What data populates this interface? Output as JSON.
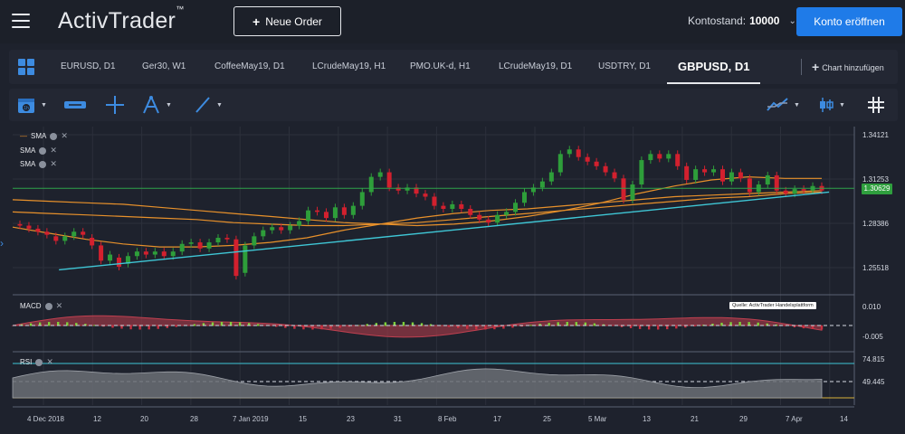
{
  "header": {
    "logo_text": "ActivTrader",
    "logo_tm": "™",
    "new_order_label": "Neue Order",
    "balance_label": "Kontostand:",
    "balance_value": "10000",
    "open_account_label": "Konto eröffnen"
  },
  "tabs": [
    {
      "label": "EURUSD, D1"
    },
    {
      "label": "Ger30, W1"
    },
    {
      "label": "CoffeeMay19, D1"
    },
    {
      "label": "LCrudeMay19, H1"
    },
    {
      "label": "PMO.UK-d, H1"
    },
    {
      "label": "LCrudeMay19, D1"
    },
    {
      "label": "USDTRY, D1"
    },
    {
      "label": "GBPUSD, D1"
    }
  ],
  "add_chart_label": "Chart hinzufügen",
  "toolbar": {
    "icons": [
      "calendar-icon",
      "bar-width-icon",
      "crosshair-icon",
      "fibonacci-icon",
      "trendline-icon",
      "indicator-icon",
      "candle-type-icon",
      "grid-toggle-icon"
    ]
  },
  "indicators": {
    "sma1": "SMA",
    "sma2": "SMA",
    "sma3": "SMA",
    "macd": "MACD",
    "rsi": "RSI"
  },
  "source_note": "Quelle: ActivTrader Handelsplattform",
  "price_axis": {
    "main": [
      "1.34121",
      "1.31253",
      "1.28386",
      "1.25518"
    ],
    "last_price": "1.30629",
    "macd": [
      "0.010",
      "-0.005"
    ],
    "rsi": [
      "74.815",
      "49.445"
    ]
  },
  "date_axis": [
    "4 Dec 2018",
    "12",
    "20",
    "28",
    "7 Jan 2019",
    "15",
    "23",
    "31",
    "8 Feb",
    "17",
    "25",
    "5 Mar",
    "13",
    "21",
    "29",
    "7 Apr",
    "14"
  ],
  "colors": {
    "bull": "#2e9e3a",
    "bear": "#d3202e",
    "sma_orange": "#e8912b",
    "trendline": "#3fc7d6",
    "hline": "#2fa34a",
    "macd_fill": "#a33a48",
    "rsi_fill": "#6b6e75",
    "accent": "#1f7be8"
  },
  "chart_data": {
    "type": "candlestick",
    "symbol": "GBPUSD",
    "timeframe": "D1",
    "ylim": [
      1.24,
      1.348
    ],
    "last_price": 1.30629,
    "candles": [
      [
        1.284,
        1.283
      ],
      [
        1.283,
        1.281
      ],
      [
        1.281,
        1.279
      ],
      [
        1.279,
        1.277
      ],
      [
        1.276,
        1.273
      ],
      [
        1.273,
        1.276
      ],
      [
        1.276,
        1.279
      ],
      [
        1.279,
        1.277
      ],
      [
        1.275,
        1.27
      ],
      [
        1.27,
        1.26
      ],
      [
        1.26,
        1.264
      ],
      [
        1.262,
        1.256
      ],
      [
        1.258,
        1.263
      ],
      [
        1.263,
        1.266
      ],
      [
        1.266,
        1.264
      ],
      [
        1.264,
        1.266
      ],
      [
        1.266,
        1.263
      ],
      [
        1.263,
        1.266
      ],
      [
        1.266,
        1.271
      ],
      [
        1.271,
        1.272
      ],
      [
        1.272,
        1.268
      ],
      [
        1.268,
        1.272
      ],
      [
        1.272,
        1.275
      ],
      [
        1.275,
        1.274
      ],
      [
        1.274,
        1.25
      ],
      [
        1.252,
        1.27
      ],
      [
        1.27,
        1.276
      ],
      [
        1.276,
        1.28
      ],
      [
        1.28,
        1.282
      ],
      [
        1.282,
        1.28
      ],
      [
        1.28,
        1.283
      ],
      [
        1.283,
        1.286
      ],
      [
        1.286,
        1.293
      ],
      [
        1.293,
        1.292
      ],
      [
        1.292,
        1.288
      ],
      [
        1.288,
        1.295
      ],
      [
        1.295,
        1.29
      ],
      [
        1.29,
        1.296
      ],
      [
        1.296,
        1.305
      ],
      [
        1.305,
        1.315
      ],
      [
        1.315,
        1.318
      ],
      [
        1.318,
        1.308
      ],
      [
        1.308,
        1.306
      ],
      [
        1.306,
        1.308
      ],
      [
        1.308,
        1.304
      ],
      [
        1.304,
        1.302
      ],
      [
        1.302,
        1.296
      ],
      [
        1.296,
        1.294
      ],
      [
        1.294,
        1.297
      ],
      [
        1.297,
        1.294
      ],
      [
        1.294,
        1.29
      ],
      [
        1.29,
        1.287
      ],
      [
        1.287,
        1.285
      ],
      [
        1.285,
        1.29
      ],
      [
        1.29,
        1.292
      ],
      [
        1.292,
        1.298
      ],
      [
        1.298,
        1.305
      ],
      [
        1.305,
        1.308
      ],
      [
        1.308,
        1.312
      ],
      [
        1.312,
        1.318
      ],
      [
        1.318,
        1.33
      ],
      [
        1.33,
        1.333
      ],
      [
        1.333,
        1.328
      ],
      [
        1.328,
        1.325
      ],
      [
        1.325,
        1.322
      ],
      [
        1.322,
        1.318
      ],
      [
        1.318,
        1.314
      ],
      [
        1.314,
        1.3
      ],
      [
        1.3,
        1.31
      ],
      [
        1.31,
        1.326
      ],
      [
        1.326,
        1.33
      ],
      [
        1.33,
        1.327
      ],
      [
        1.327,
        1.33
      ],
      [
        1.33,
        1.322
      ],
      [
        1.322,
        1.313
      ],
      [
        1.313,
        1.32
      ],
      [
        1.32,
        1.318
      ],
      [
        1.318,
        1.32
      ],
      [
        1.32,
        1.312
      ],
      [
        1.312,
        1.318
      ],
      [
        1.318,
        1.314
      ],
      [
        1.314,
        1.305
      ],
      [
        1.305,
        1.31
      ],
      [
        1.31,
        1.316
      ],
      [
        1.316,
        1.306
      ],
      [
        1.306,
        1.304
      ],
      [
        1.304,
        1.307
      ],
      [
        1.307,
        1.306
      ],
      [
        1.306,
        1.309
      ],
      [
        1.309,
        1.306
      ]
    ],
    "series": [
      {
        "name": "SMA",
        "values": [
          1.3,
          1.299,
          1.298,
          1.297,
          1.295,
          1.293,
          1.291,
          1.289,
          1.287,
          1.285,
          1.284,
          1.283,
          1.284,
          1.286,
          1.289,
          1.293,
          1.298,
          1.304,
          1.309,
          1.313,
          1.315,
          1.314,
          1.314
        ]
      },
      {
        "name": "SMA",
        "values": [
          1.292,
          1.291,
          1.29,
          1.289,
          1.288,
          1.287,
          1.285,
          1.284,
          1.283,
          1.283,
          1.284,
          1.285,
          1.287,
          1.289,
          1.291,
          1.293,
          1.295,
          1.297,
          1.299,
          1.301,
          1.302,
          1.304,
          1.305
        ]
      },
      {
        "name": "SMA",
        "values": [
          1.282,
          1.278,
          1.274,
          1.271,
          1.269,
          1.269,
          1.27,
          1.272,
          1.275,
          1.28,
          1.284,
          1.288,
          1.291,
          1.293,
          1.294,
          1.296,
          1.298,
          1.3,
          1.302,
          1.303,
          1.304,
          1.305,
          1.306
        ]
      }
    ],
    "trendline": [
      [
        1.254,
        0.055
      ],
      [
        1.305,
        0.97
      ]
    ],
    "hline": 1.3075
  }
}
